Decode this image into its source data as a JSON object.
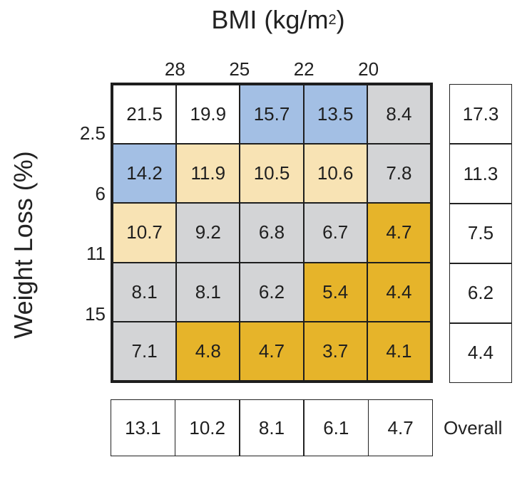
{
  "chart_data": {
    "type": "heatmap",
    "title_main": "BMI (kg/m",
    "title_sup": "2",
    "title_end": ")",
    "ylabel": "Weight Loss (%)",
    "x_ticks": [
      "28",
      "25",
      "22",
      "20"
    ],
    "y_ticks": [
      "2.5",
      "6",
      "11",
      "15"
    ],
    "rows": [
      [
        21.5,
        19.9,
        15.7,
        13.5,
        8.4
      ],
      [
        14.2,
        11.9,
        10.5,
        10.6,
        7.8
      ],
      [
        10.7,
        9.2,
        6.8,
        6.7,
        4.7
      ],
      [
        8.1,
        8.1,
        6.2,
        5.4,
        4.4
      ],
      [
        7.1,
        4.8,
        4.7,
        3.7,
        4.1
      ]
    ],
    "cell_colors": [
      [
        "white",
        "white",
        "blue",
        "blue",
        "gray"
      ],
      [
        "blue",
        "tan",
        "tan",
        "tan",
        "gray"
      ],
      [
        "tan",
        "gray",
        "gray",
        "gray",
        "gold"
      ],
      [
        "gray",
        "gray",
        "gray",
        "gold",
        "gold"
      ],
      [
        "gray",
        "gold",
        "gold",
        "gold",
        "gold"
      ]
    ],
    "color_map": {
      "white": "#ffffff",
      "blue": "#a3bfe4",
      "tan": "#f8e3b4",
      "gray": "#d3d4d6",
      "gold": "#e6b42a"
    },
    "row_totals": [
      17.3,
      11.3,
      7.5,
      6.2,
      4.4
    ],
    "column_totals": [
      13.1,
      10.2,
      8.1,
      6.1,
      4.7
    ],
    "overall_label": "Overall"
  }
}
